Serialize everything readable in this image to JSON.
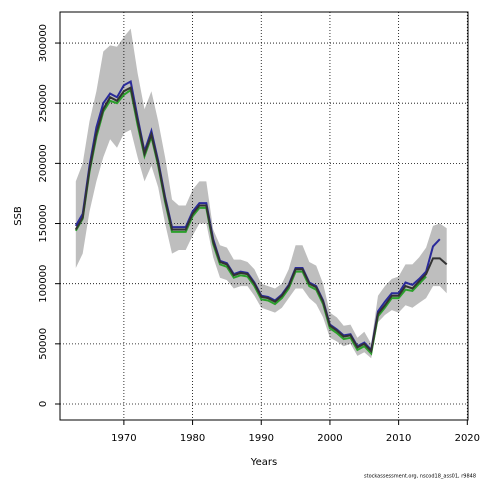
{
  "chart_data": {
    "type": "line",
    "x_label": "Years",
    "y_label": "SSB",
    "footnote": "stockassessment.org, nscod18_ass01, r9848",
    "grid": true,
    "x": [
      1963,
      1964,
      1965,
      1966,
      1967,
      1968,
      1969,
      1970,
      1971,
      1972,
      1973,
      1974,
      1975,
      1976,
      1977,
      1978,
      1979,
      1980,
      1981,
      1982,
      1983,
      1984,
      1985,
      1986,
      1987,
      1988,
      1989,
      1990,
      1991,
      1992,
      1993,
      1994,
      1995,
      1996,
      1997,
      1998,
      1999,
      2000,
      2001,
      2002,
      2003,
      2004,
      2005,
      2006,
      2007,
      2008,
      2009,
      2010,
      2011,
      2012,
      2013,
      2014,
      2015,
      2016,
      2017
    ],
    "band": {
      "color": "#bebebe",
      "upper": [
        185000,
        200000,
        235000,
        260000,
        293000,
        298000,
        297000,
        305000,
        312000,
        275000,
        245000,
        260000,
        235000,
        205000,
        170000,
        165000,
        165000,
        178000,
        185000,
        185000,
        145000,
        132000,
        130000,
        120000,
        120000,
        118000,
        112000,
        100000,
        98000,
        96000,
        100000,
        112000,
        132000,
        132000,
        118000,
        115000,
        100000,
        76000,
        72000,
        65000,
        66000,
        55000,
        60000,
        50000,
        90000,
        98000,
        104000,
        106000,
        116000,
        116000,
        122000,
        130000,
        148000,
        150000,
        146000
      ],
      "lower": [
        113000,
        125000,
        160000,
        185000,
        205000,
        220000,
        213000,
        225000,
        228000,
        205000,
        185000,
        198000,
        180000,
        150000,
        125000,
        128000,
        128000,
        140000,
        150000,
        150000,
        122000,
        105000,
        103000,
        96000,
        98000,
        98000,
        90000,
        80000,
        78000,
        76000,
        80000,
        88000,
        96000,
        96000,
        88000,
        83000,
        72000,
        55000,
        52000,
        48000,
        50000,
        40000,
        43000,
        38000,
        68000,
        74000,
        78000,
        76000,
        82000,
        80000,
        84000,
        88000,
        98000,
        98000,
        92000
      ]
    },
    "series": [
      {
        "color": "#2a2a9a",
        "values": [
          148000,
          158000,
          198000,
          230000,
          250000,
          258000,
          255000,
          265000,
          268000,
          238000,
          210000,
          227000,
          202000,
          172000,
          147000,
          147000,
          147000,
          160000,
          167000,
          167000,
          137000,
          119000,
          117000,
          108000,
          110000,
          109000,
          101000,
          90000,
          89000,
          86000,
          91000,
          99000,
          113000,
          113000,
          101000,
          98000,
          86000,
          66000,
          62000,
          57000,
          58000,
          48000,
          51000,
          45000,
          77000,
          85000,
          92000,
          92000,
          101000,
          99000,
          104000,
          110000,
          131000,
          137000,
          null
        ]
      },
      {
        "color": "#2ca02c",
        "values": [
          144000,
          154000,
          193000,
          222000,
          243000,
          252000,
          250000,
          257000,
          261000,
          232000,
          206000,
          222000,
          198000,
          168000,
          143000,
          143000,
          143000,
          156000,
          163000,
          163000,
          133000,
          116000,
          114000,
          105000,
          107000,
          106000,
          98000,
          87000,
          86000,
          83000,
          88000,
          96000,
          110000,
          110000,
          98000,
          95000,
          83000,
          63000,
          59000,
          54000,
          55000,
          45000,
          48000,
          42000,
          73000,
          80000,
          88000,
          88000,
          95000,
          94000,
          100000,
          106000,
          null,
          null,
          null
        ]
      },
      {
        "color": "#333333",
        "values": [
          145000,
          155000,
          195000,
          225000,
          245000,
          255000,
          252000,
          260000,
          263000,
          235000,
          208000,
          224000,
          200000,
          170000,
          145000,
          145000,
          145000,
          158000,
          165000,
          165000,
          135000,
          118000,
          116000,
          107000,
          109000,
          108000,
          100000,
          89000,
          88000,
          85000,
          90000,
          98000,
          112000,
          112000,
          100000,
          97000,
          85000,
          65000,
          61000,
          56000,
          57000,
          47000,
          50000,
          44000,
          75000,
          82000,
          90000,
          90000,
          98000,
          96000,
          102000,
          108000,
          121000,
          121000,
          116000
        ]
      }
    ],
    "xlim": [
      1960.7,
      2020.1
    ],
    "xticks": [
      1970,
      1980,
      1990,
      2000,
      2010,
      2020
    ],
    "ylim": [
      -13300,
      325800
    ],
    "yticks": [
      0,
      50000,
      100000,
      150000,
      200000,
      250000,
      300000
    ]
  }
}
